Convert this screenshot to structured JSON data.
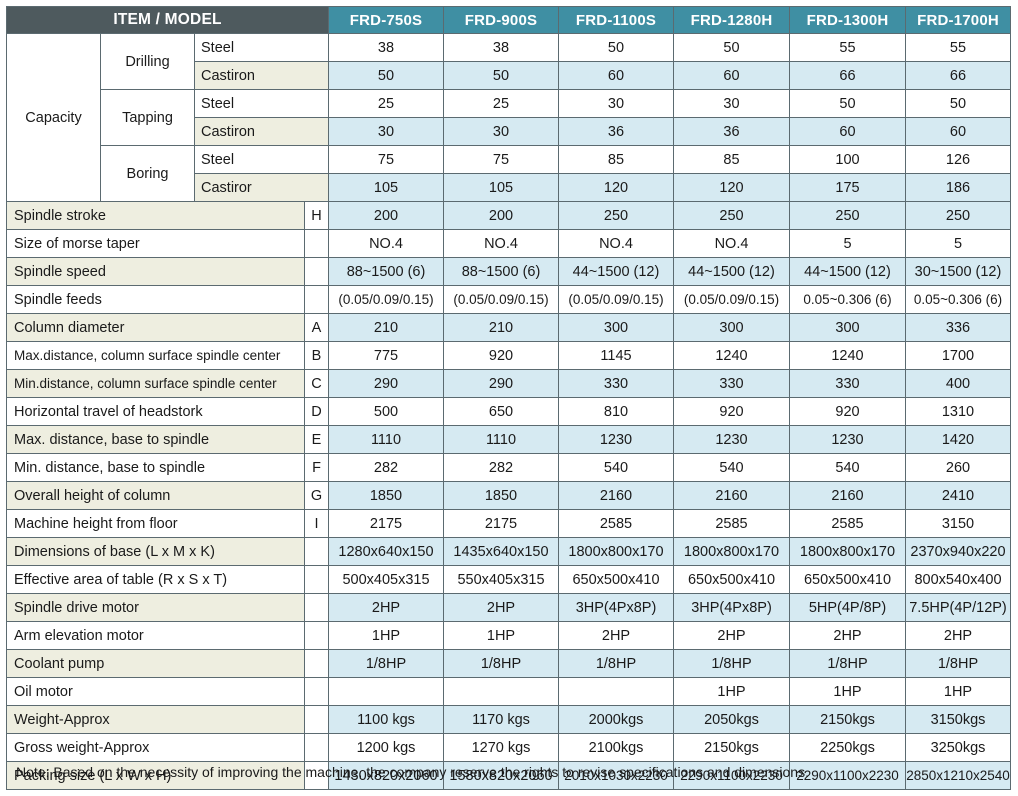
{
  "header": {
    "item_model": "ITEM  / MODEL",
    "models": [
      "FRD-750S",
      "FRD-900S",
      "FRD-1100S",
      "FRD-1280H",
      "FRD-1300H",
      "FRD-1700H"
    ]
  },
  "capacity": {
    "label": "Capacity",
    "groups": [
      {
        "name": "Drilling",
        "rows": [
          {
            "material": "Steel",
            "values": [
              "38",
              "38",
              "50",
              "50",
              "55",
              "55"
            ]
          },
          {
            "material": "Castiron",
            "values": [
              "50",
              "50",
              "60",
              "60",
              "66",
              "66"
            ]
          }
        ]
      },
      {
        "name": "Tapping",
        "rows": [
          {
            "material": "Steel",
            "values": [
              "25",
              "25",
              "30",
              "30",
              "50",
              "50"
            ]
          },
          {
            "material": "Castiron",
            "values": [
              "30",
              "30",
              "36",
              "36",
              "60",
              "60"
            ]
          }
        ]
      },
      {
        "name": "Boring",
        "rows": [
          {
            "material": "Steel",
            "values": [
              "75",
              "75",
              "85",
              "85",
              "100",
              "126"
            ]
          },
          {
            "material": "Castiror",
            "values": [
              "105",
              "105",
              "120",
              "120",
              "175",
              "186"
            ]
          }
        ]
      }
    ]
  },
  "rows": [
    {
      "label": "Spindle stroke",
      "code": "H",
      "values": [
        "200",
        "200",
        "250",
        "250",
        "250",
        "250"
      ]
    },
    {
      "label": "Size of morse taper",
      "code": "",
      "values": [
        "NO.4",
        "NO.4",
        "NO.4",
        "NO.4",
        "5",
        "5"
      ]
    },
    {
      "label": "Spindle speed",
      "code": "",
      "values": [
        "88~1500 (6)",
        "88~1500 (6)",
        "44~1500 (12)",
        "44~1500 (12)",
        "44~1500 (12)",
        "30~1500 (12)"
      ]
    },
    {
      "label": "Spindle feeds",
      "code": "",
      "values": [
        "(0.05/0.09/0.15)",
        "(0.05/0.09/0.15)",
        "(0.05/0.09/0.15)",
        "(0.05/0.09/0.15)",
        "0.05~0.306 (6)",
        "0.05~0.306 (6)"
      ]
    },
    {
      "label": "Column diameter",
      "code": "A",
      "values": [
        "210",
        "210",
        "300",
        "300",
        "300",
        "336"
      ]
    },
    {
      "label": "Max.distance, column surface spindle center",
      "code": "B",
      "values": [
        "775",
        "920",
        "1145",
        "1240",
        "1240",
        "1700"
      ]
    },
    {
      "label": "Min.distance, column surface spindle center",
      "code": "C",
      "values": [
        "290",
        "290",
        "330",
        "330",
        "330",
        "400"
      ]
    },
    {
      "label": "Horizontal travel of headstork",
      "code": "D",
      "values": [
        "500",
        "650",
        "810",
        "920",
        "920",
        "1310"
      ]
    },
    {
      "label": "Max. distance, base to spindle",
      "code": "E",
      "values": [
        "1110",
        "1110",
        "1230",
        "1230",
        "1230",
        "1420"
      ]
    },
    {
      "label": "Min. distance, base to spindle",
      "code": "F",
      "values": [
        "282",
        "282",
        "540",
        "540",
        "540",
        "260"
      ]
    },
    {
      "label": "Overall height of column",
      "code": "G",
      "values": [
        "1850",
        "1850",
        "2160",
        "2160",
        "2160",
        "2410"
      ]
    },
    {
      "label": "Machine height from floor",
      "code": "I",
      "values": [
        "2175",
        "2175",
        "2585",
        "2585",
        "2585",
        "3150"
      ]
    },
    {
      "label": "Dimensions of base (L x M x K)",
      "code": "",
      "values": [
        "1280x640x150",
        "1435x640x150",
        "1800x800x170",
        "1800x800x170",
        "1800x800x170",
        "2370x940x220"
      ]
    },
    {
      "label": "Effective area of table (R x S x T)",
      "code": "",
      "values": [
        "500x405x315",
        "550x405x315",
        "650x500x410",
        "650x500x410",
        "650x500x410",
        "800x540x400"
      ]
    },
    {
      "label": "Spindle drive motor",
      "code": "",
      "values": [
        "2HP",
        "2HP",
        "3HP(4Px8P)",
        "3HP(4Px8P)",
        "5HP(4P/8P)",
        "7.5HP(4P/12P)"
      ]
    },
    {
      "label": "Arm elevation motor",
      "code": "",
      "values": [
        "1HP",
        "1HP",
        "2HP",
        "2HP",
        "2HP",
        "2HP"
      ]
    },
    {
      "label": "Coolant pump",
      "code": "",
      "values": [
        "1/8HP",
        "1/8HP",
        "1/8HP",
        "1/8HP",
        "1/8HP",
        "1/8HP"
      ]
    },
    {
      "label": "Oil motor",
      "code": "",
      "values": [
        "",
        "",
        "",
        "1HP",
        "1HP",
        "1HP"
      ]
    },
    {
      "label": "Weight-Approx",
      "code": "",
      "values": [
        "1100 kgs",
        "1170 kgs",
        "2000kgs",
        "2050kgs",
        "2150kgs",
        "3150kgs"
      ]
    },
    {
      "label": "Gross weight-Approx",
      "code": "",
      "values": [
        "1200 kgs",
        "1270 kgs",
        "2100kgs",
        "2150kgs",
        "2250kgs",
        "3250kgs"
      ]
    },
    {
      "label": "Packing size (L x W x H)",
      "code": "",
      "values": [
        "1430x820x2060",
        "1580x820x2060",
        "2010x1030x2230",
        "2290x1100x2230",
        "2290x1100x2230",
        "2850x1210x2540"
      ]
    }
  ],
  "note": "Note: Based on the necessity of improving the machine, the company reserve the rights to revise specifications and dimensions."
}
